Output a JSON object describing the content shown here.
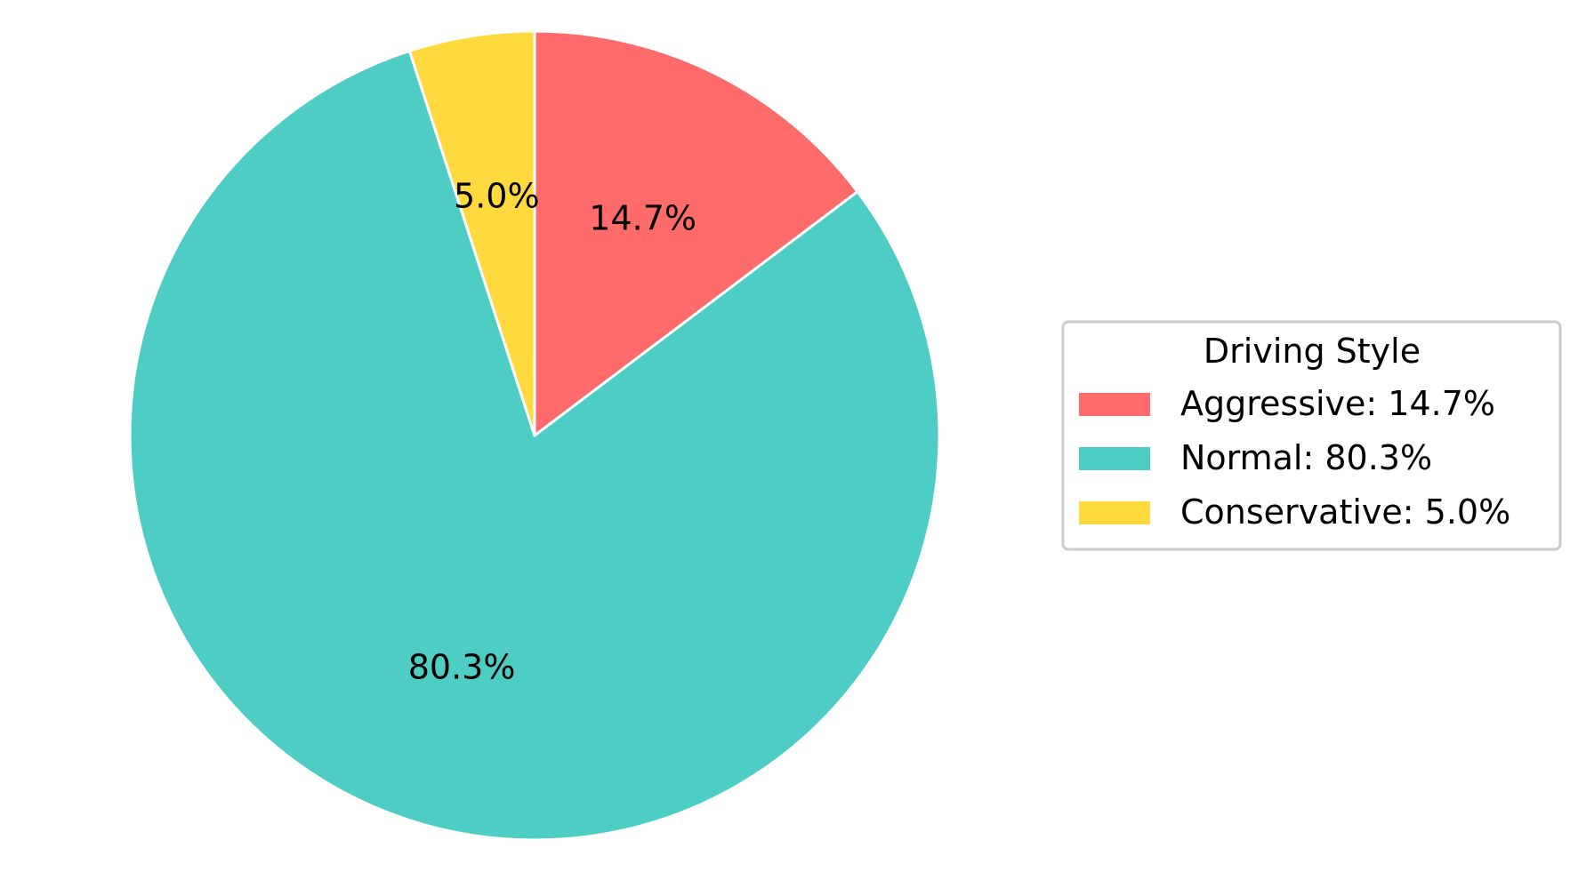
{
  "chart_data": {
    "type": "pie",
    "title": "",
    "start_angle_deg": 90,
    "direction": "clockwise",
    "slices": [
      {
        "label": "Aggressive",
        "value": 14.7,
        "pct_label": "14.7%",
        "legend_label": "Aggressive: 14.7%",
        "color": "#ff6b6b"
      },
      {
        "label": "Normal",
        "value": 80.3,
        "pct_label": "80.3%",
        "legend_label": "Normal: 80.3%",
        "color": "#4ecdc4"
      },
      {
        "label": "Conservative",
        "value": 5.0,
        "pct_label": "5.0%",
        "legend_label": "Conservative: 5.0%",
        "color": "#ffd93d"
      }
    ],
    "legend": {
      "title": "Driving Style",
      "placement": "center-right"
    },
    "slice_edge_color": "#ffffff"
  }
}
